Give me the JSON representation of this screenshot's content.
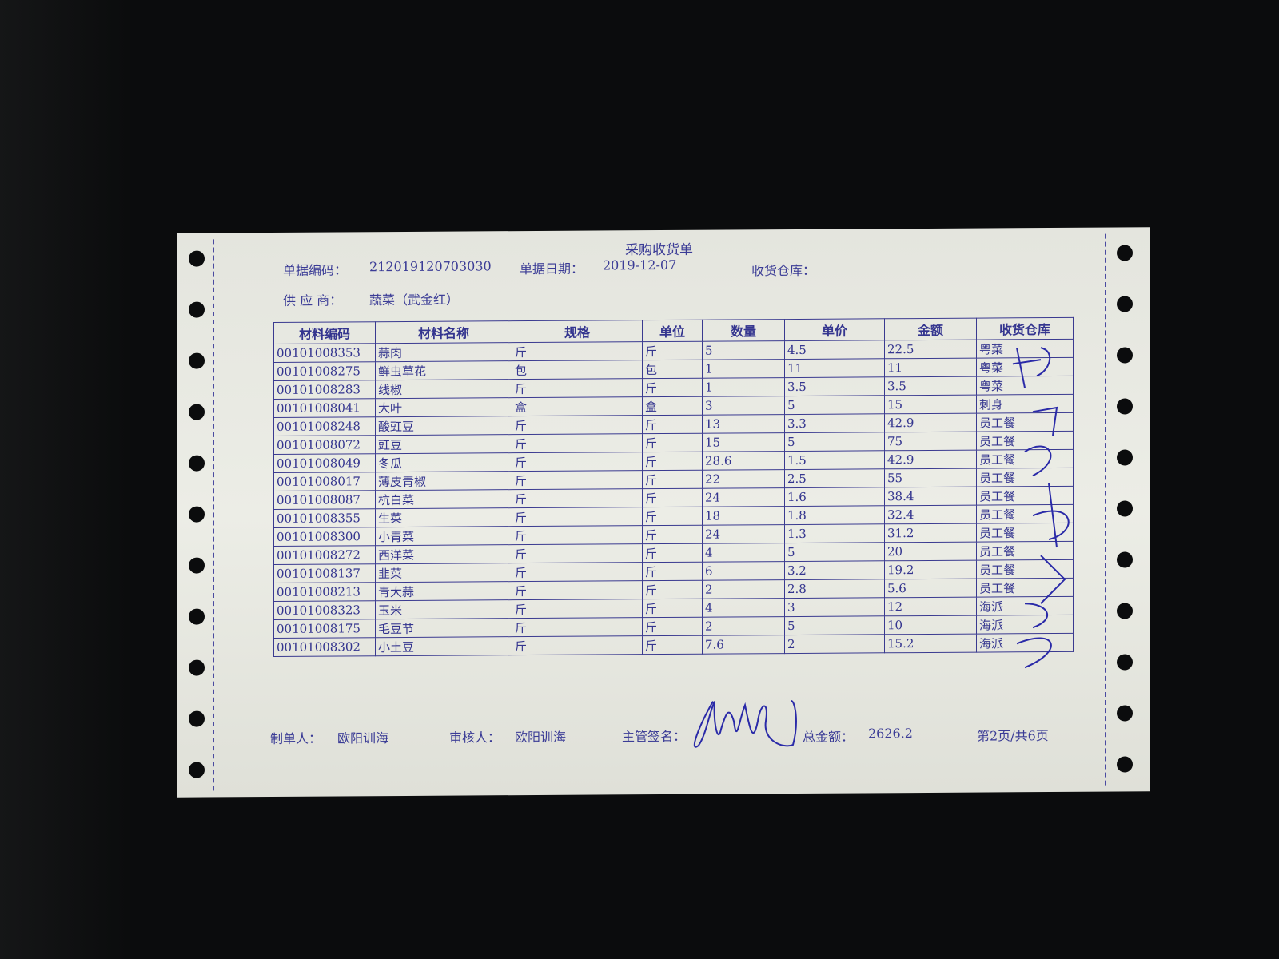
{
  "document": {
    "title": "采购收货单",
    "doc_no_label": "单据编码：",
    "doc_no": "212019120703030",
    "date_label": "单据日期：",
    "date": "2019-12-07",
    "warehouse_label": "收货仓库：",
    "supplier_label": "供 应 商：",
    "supplier": "蔬菜（武金红）"
  },
  "table": {
    "headers": [
      "材料编码",
      "材料名称",
      "规格",
      "单位",
      "数量",
      "单价",
      "金额",
      "收货仓库"
    ],
    "rows": [
      [
        "00101008353",
        "蒜肉",
        "斤",
        "斤",
        "5",
        "4.5",
        "22.5",
        "粤菜"
      ],
      [
        "00101008275",
        "鲜虫草花",
        "包",
        "包",
        "1",
        "11",
        "11",
        "粤菜"
      ],
      [
        "00101008283",
        "线椒",
        "斤",
        "斤",
        "1",
        "3.5",
        "3.5",
        "粤菜"
      ],
      [
        "00101008041",
        "大叶",
        "盒",
        "盒",
        "3",
        "5",
        "15",
        "刺身"
      ],
      [
        "00101008248",
        "酸豇豆",
        "斤",
        "斤",
        "13",
        "3.3",
        "42.9",
        "员工餐"
      ],
      [
        "00101008072",
        "豇豆",
        "斤",
        "斤",
        "15",
        "5",
        "75",
        "员工餐"
      ],
      [
        "00101008049",
        "冬瓜",
        "斤",
        "斤",
        "28.6",
        "1.5",
        "42.9",
        "员工餐"
      ],
      [
        "00101008017",
        "薄皮青椒",
        "斤",
        "斤",
        "22",
        "2.5",
        "55",
        "员工餐"
      ],
      [
        "00101008087",
        "杭白菜",
        "斤",
        "斤",
        "24",
        "1.6",
        "38.4",
        "员工餐"
      ],
      [
        "00101008355",
        "生菜",
        "斤",
        "斤",
        "18",
        "1.8",
        "32.4",
        "员工餐"
      ],
      [
        "00101008300",
        "小青菜",
        "斤",
        "斤",
        "24",
        "1.3",
        "31.2",
        "员工餐"
      ],
      [
        "00101008272",
        "西洋菜",
        "斤",
        "斤",
        "4",
        "5",
        "20",
        "员工餐"
      ],
      [
        "00101008137",
        "韭菜",
        "斤",
        "斤",
        "6",
        "3.2",
        "19.2",
        "员工餐"
      ],
      [
        "00101008213",
        "青大蒜",
        "斤",
        "斤",
        "2",
        "2.8",
        "5.6",
        "员工餐"
      ],
      [
        "00101008323",
        "玉米",
        "斤",
        "斤",
        "4",
        "3",
        "12",
        "海派"
      ],
      [
        "00101008175",
        "毛豆节",
        "斤",
        "斤",
        "2",
        "5",
        "10",
        "海派"
      ],
      [
        "00101008302",
        "小土豆",
        "斤",
        "斤",
        "7.6",
        "2",
        "15.2",
        "海派"
      ]
    ]
  },
  "footer": {
    "maker_label": "制单人：",
    "maker": "欧阳训海",
    "reviewer_label": "审核人：",
    "reviewer": "欧阳训海",
    "supervisor_label": "主管签名：",
    "total_label": "总金额：",
    "total": "2626.2",
    "page": "第2页/共6页"
  },
  "colors": {
    "ink": "#3b3c96",
    "paper": "#e8e9e2",
    "background": "#0b0c0d",
    "signature": "#2a2aa8"
  }
}
